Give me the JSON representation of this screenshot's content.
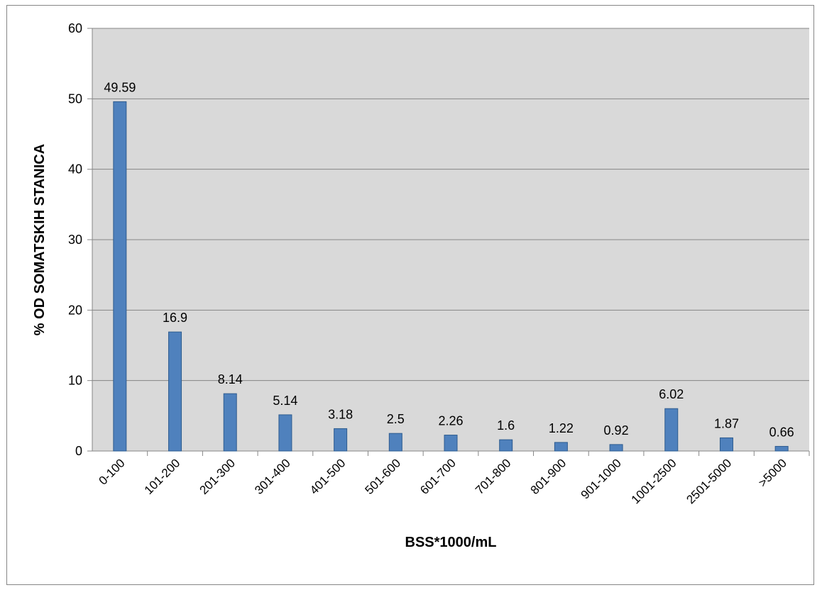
{
  "chart_data": {
    "type": "bar",
    "title": "",
    "xlabel": "BSS*1000/mL",
    "ylabel": "% OD SOMATSKIH STANICA",
    "categories": [
      "0-100",
      "101-200",
      "201-300",
      "301-400",
      "401-500",
      "501-600",
      "601-700",
      "701-800",
      "801-900",
      "901-1000",
      "1001-2500",
      "2501-5000",
      ">5000"
    ],
    "values": [
      49.59,
      16.9,
      8.14,
      5.14,
      3.18,
      2.5,
      2.26,
      1.6,
      1.22,
      0.92,
      6.02,
      1.87,
      0.66
    ],
    "data_labels": [
      "49.59",
      "16.9",
      "8.14",
      "5.14",
      "3.18",
      "2.5",
      "2.26",
      "1.6",
      "1.22",
      "0.92",
      "6.02",
      "1.87",
      "0.66"
    ],
    "yticks": [
      0,
      10,
      20,
      30,
      40,
      50,
      60
    ],
    "ylim": [
      0,
      60
    ],
    "grid": true,
    "legend": "none",
    "colors": {
      "bar": "#4F81BD",
      "bar_stroke": "#2E5C8F",
      "plot_background": "#D9D9D9",
      "gridline": "#868686",
      "frame": "#868686"
    }
  }
}
